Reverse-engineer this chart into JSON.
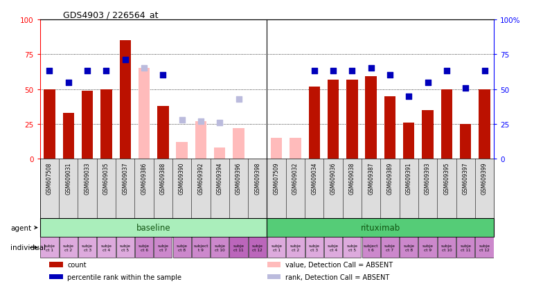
{
  "title": "GDS4903 / 226564_at",
  "samples": [
    "GSM607508",
    "GSM609031",
    "GSM609033",
    "GSM609035",
    "GSM609037",
    "GSM609386",
    "GSM609388",
    "GSM609390",
    "GSM609392",
    "GSM609394",
    "GSM609396",
    "GSM609398",
    "GSM607509",
    "GSM609032",
    "GSM609034",
    "GSM609036",
    "GSM609038",
    "GSM609387",
    "GSM609389",
    "GSM609391",
    "GSM609393",
    "GSM609395",
    "GSM609397",
    "GSM609399"
  ],
  "count_values": [
    50,
    33,
    49,
    50,
    85,
    null,
    38,
    null,
    null,
    null,
    null,
    null,
    null,
    null,
    52,
    57,
    57,
    59,
    45,
    26,
    35,
    50,
    25,
    50
  ],
  "count_absent": [
    false,
    false,
    false,
    false,
    false,
    true,
    false,
    true,
    true,
    true,
    true,
    true,
    true,
    true,
    false,
    false,
    false,
    false,
    false,
    false,
    false,
    false,
    false,
    false
  ],
  "absent_count_values": [
    null,
    null,
    null,
    null,
    null,
    65,
    null,
    12,
    27,
    8,
    22,
    null,
    15,
    15,
    null,
    null,
    null,
    null,
    null,
    null,
    null,
    null,
    null,
    null
  ],
  "rank_values": [
    63,
    55,
    63,
    63,
    71,
    65,
    60,
    28,
    27,
    26,
    43,
    null,
    null,
    null,
    63,
    63,
    63,
    65,
    60,
    45,
    55,
    63,
    51,
    63
  ],
  "rank_absent": [
    false,
    false,
    false,
    false,
    false,
    true,
    false,
    true,
    true,
    true,
    true,
    false,
    true,
    true,
    false,
    false,
    false,
    false,
    false,
    false,
    false,
    false,
    false,
    false
  ],
  "individuals": [
    "subje\nct 1",
    "subje\nct 2",
    "subje\nct 3",
    "subje\nct 4",
    "subje\nct 5",
    "subje\nct 6",
    "subje\nct 7",
    "subje\nct 8",
    "subject\nt 9",
    "subje\nct 10",
    "subje\nct 11",
    "subje\nct 12",
    "subje\nct 1",
    "subje\nct 2",
    "subje\nct 3",
    "subje\nct 4",
    "subje\nct 5",
    "subject\nt 6",
    "subje\nct 7",
    "subje\nct 8",
    "subje\nct 9",
    "subje\nct 10",
    "subje\nct 11",
    "subje\nct 12"
  ],
  "ind_colors": [
    "#ddaadd",
    "#ddaadd",
    "#ddaadd",
    "#ddaadd",
    "#ddaadd",
    "#dd88dd",
    "#dd88dd",
    "#dd88dd",
    "#dd88dd",
    "#dd88dd",
    "#cc66cc",
    "#cc66cc",
    "#ddaadd",
    "#ddaadd",
    "#ddaadd",
    "#ddaadd",
    "#ddaadd",
    "#dd88dd",
    "#dd88dd",
    "#dd88dd",
    "#dd88dd",
    "#dd88dd",
    "#dd88dd",
    "#dd88dd"
  ],
  "bar_color_present": "#bb1100",
  "bar_color_absent": "#ffbbbb",
  "rank_color_present": "#0000bb",
  "rank_color_absent": "#bbbbdd",
  "agent_baseline_color": "#aaeebb",
  "agent_rituximab_color": "#55cc77",
  "individual_color": "#dd88ee",
  "legend_items": [
    {
      "label": "count",
      "color": "#bb1100"
    },
    {
      "label": "percentile rank within the sample",
      "color": "#0000bb"
    },
    {
      "label": "value, Detection Call = ABSENT",
      "color": "#ffbbbb"
    },
    {
      "label": "rank, Detection Call = ABSENT",
      "color": "#bbbbdd"
    }
  ],
  "yticks": [
    0,
    25,
    50,
    75,
    100
  ],
  "background_color": "#ffffff"
}
